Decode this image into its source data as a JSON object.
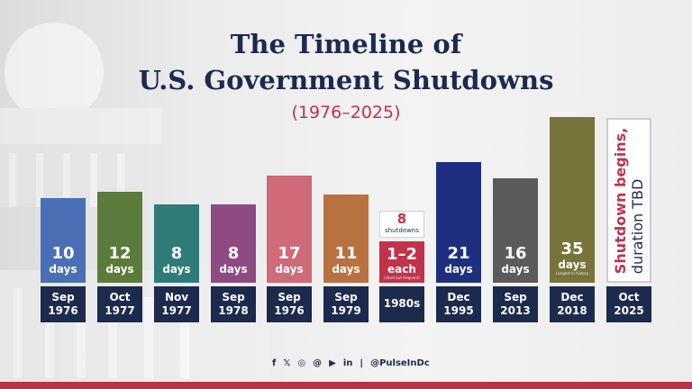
{
  "title_line1": "The Timeline of",
  "title_line2": "U.S. Government Shutdowns",
  "subtitle": "(1976–2025)",
  "chart_data": {
    "type": "bar",
    "title": "The Timeline of U.S. Government Shutdowns",
    "subtitle": "(1976–2025)",
    "categories": [
      "Sep 1976",
      "Oct 1977",
      "Nov 1977",
      "Sep 1978",
      "Sep 1976",
      "Sep 1979",
      "1980s",
      "Dec 1995",
      "Sep 2013",
      "Dec 2018",
      "Oct 2025"
    ],
    "values": [
      10,
      12,
      8,
      8,
      17,
      11,
      "1–2",
      21,
      16,
      35,
      null
    ],
    "unit": "days",
    "colors": [
      "#4a6fb5",
      "#5b7b3c",
      "#2e7b78",
      "#8d4a83",
      "#cf6a79",
      "#b8723f",
      "#c0334a",
      "#1f2f80",
      "#5b5b5b",
      "#77733a",
      "#ffffff"
    ],
    "bars": [
      {
        "value": "10",
        "unit": "days",
        "date1": "Sep",
        "date2": "1976"
      },
      {
        "value": "12",
        "unit": "days",
        "date1": "Oct",
        "date2": "1977"
      },
      {
        "value": "8",
        "unit": "days",
        "date1": "Nov",
        "date2": "1977"
      },
      {
        "value": "8",
        "unit": "days",
        "date1": "Sep",
        "date2": "1978"
      },
      {
        "value": "17",
        "unit": "days",
        "date1": "Sep",
        "date2": "1976"
      },
      {
        "value": "11",
        "unit": "days",
        "date1": "Sep",
        "date2": "1979"
      },
      {
        "value": "1–2",
        "unit": "each",
        "note": "(short but frequent)",
        "count": "8",
        "count_label": "shutdowns",
        "date1": "1980s",
        "date2": ""
      },
      {
        "value": "21",
        "unit": "days",
        "date1": "Dec",
        "date2": "1995"
      },
      {
        "value": "16",
        "unit": "days",
        "date1": "Sep",
        "date2": "2013"
      },
      {
        "value": "35",
        "unit": "days",
        "note": "Longest in history",
        "date1": "Dec",
        "date2": "2018"
      },
      {
        "value": "",
        "unit": "",
        "line1": "Shutdown begins,",
        "line2": "duration TBD",
        "date1": "Oct",
        "date2": "2025"
      }
    ]
  },
  "footer": {
    "icons": [
      "facebook-icon",
      "x-icon",
      "instagram-icon",
      "threads-icon",
      "youtube-icon",
      "linkedin-icon"
    ],
    "handle": "@PulseInDc",
    "sep": "|"
  }
}
